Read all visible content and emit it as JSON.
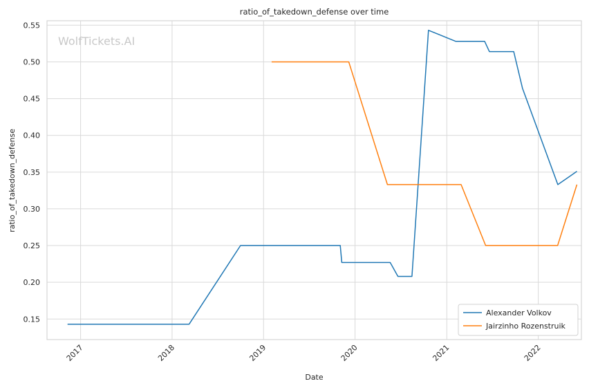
{
  "chart_data": {
    "type": "line",
    "title": "ratio_of_takedown_defense over time",
    "xlabel": "Date",
    "ylabel": "ratio_of_takedown_defense",
    "watermark": "WolfTickets.AI",
    "x_axis": {
      "type": "date",
      "range": [
        "2016-08-20",
        "2022-06-22"
      ],
      "ticks": [
        "2017",
        "2018",
        "2019",
        "2020",
        "2021",
        "2022"
      ],
      "tick_dates": [
        "2017-01-01",
        "2018-01-01",
        "2019-01-01",
        "2020-01-01",
        "2021-01-01",
        "2022-01-01"
      ]
    },
    "y_axis": {
      "range": [
        0.122,
        0.556
      ],
      "ticks": [
        "0.15",
        "0.20",
        "0.25",
        "0.30",
        "0.35",
        "0.40",
        "0.45",
        "0.50",
        "0.55"
      ],
      "tick_values": [
        0.15,
        0.2,
        0.25,
        0.3,
        0.35,
        0.4,
        0.45,
        0.5,
        0.55
      ]
    },
    "grid": true,
    "legend_position": "bottom-right",
    "series": [
      {
        "name": "Alexander Volkov",
        "color": "#1f77b4",
        "points": [
          {
            "x": "2016-11-10",
            "y": 0.143
          },
          {
            "x": "2018-03-10",
            "y": 0.143
          },
          {
            "x": "2018-10-01",
            "y": 0.25
          },
          {
            "x": "2019-11-03",
            "y": 0.25
          },
          {
            "x": "2019-11-09",
            "y": 0.227
          },
          {
            "x": "2020-05-20",
            "y": 0.227
          },
          {
            "x": "2020-06-20",
            "y": 0.208
          },
          {
            "x": "2020-08-15",
            "y": 0.208
          },
          {
            "x": "2020-10-20",
            "y": 0.543
          },
          {
            "x": "2021-02-05",
            "y": 0.528
          },
          {
            "x": "2021-06-01",
            "y": 0.528
          },
          {
            "x": "2021-06-20",
            "y": 0.514
          },
          {
            "x": "2021-09-25",
            "y": 0.514
          },
          {
            "x": "2021-10-30",
            "y": 0.464
          },
          {
            "x": "2022-03-20",
            "y": 0.333
          },
          {
            "x": "2022-06-04",
            "y": 0.351
          }
        ]
      },
      {
        "name": "Jairzinho Rozenstruik",
        "color": "#ff7f0e",
        "points": [
          {
            "x": "2019-02-02",
            "y": 0.5
          },
          {
            "x": "2019-12-07",
            "y": 0.5
          },
          {
            "x": "2020-05-09",
            "y": 0.333
          },
          {
            "x": "2021-02-27",
            "y": 0.333
          },
          {
            "x": "2021-06-05",
            "y": 0.25
          },
          {
            "x": "2022-03-19",
            "y": 0.25
          },
          {
            "x": "2022-06-04",
            "y": 0.333
          }
        ]
      }
    ]
  }
}
